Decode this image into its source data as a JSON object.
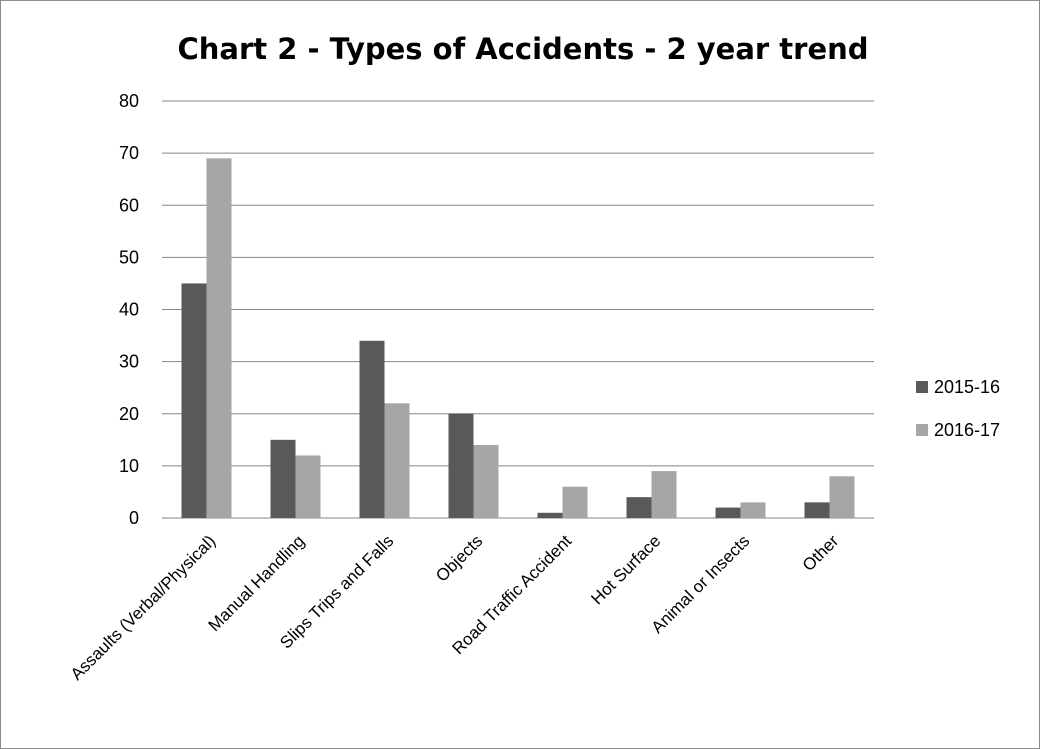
{
  "chart_data": {
    "type": "bar",
    "title": "Chart 2 - Types of Accidents - 2 year trend",
    "categories": [
      "Assaults (Verbal/Physical)",
      "Manual Handling",
      "Slips Trips and Falls",
      "Objects",
      "Road Traffic Accident",
      "Hot Surface",
      "Animal or Insects",
      "Other"
    ],
    "series": [
      {
        "name": "2015-16",
        "color": "#595959",
        "values": [
          45,
          15,
          34,
          20,
          1,
          4,
          2,
          3
        ]
      },
      {
        "name": "2016-17",
        "color": "#a6a6a6",
        "values": [
          69,
          12,
          22,
          14,
          6,
          9,
          3,
          8
        ]
      }
    ],
    "ylim": [
      0,
      80
    ],
    "yticks": [
      0,
      10,
      20,
      30,
      40,
      50,
      60,
      70,
      80
    ],
    "grid": true,
    "legend_position": "right"
  }
}
